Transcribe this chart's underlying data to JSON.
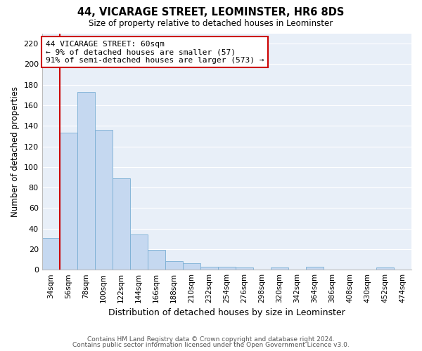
{
  "title": "44, VICARAGE STREET, LEOMINSTER, HR6 8DS",
  "subtitle": "Size of property relative to detached houses in Leominster",
  "xlabel": "Distribution of detached houses by size in Leominster",
  "ylabel": "Number of detached properties",
  "bar_color": "#c5d8f0",
  "bar_edge_color": "#7aafd4",
  "background_color": "#e8eff8",
  "grid_color": "#ffffff",
  "annotation_line_color": "#cc0000",
  "annotation_box_color": "#cc0000",
  "annotation_text": "44 VICARAGE STREET: 60sqm\n← 9% of detached houses are smaller (57)\n91% of semi-detached houses are larger (573) →",
  "categories": [
    "34sqm",
    "56sqm",
    "78sqm",
    "100sqm",
    "122sqm",
    "144sqm",
    "166sqm",
    "188sqm",
    "210sqm",
    "232sqm",
    "254sqm",
    "276sqm",
    "298sqm",
    "320sqm",
    "342sqm",
    "364sqm",
    "386sqm",
    "408sqm",
    "430sqm",
    "452sqm",
    "474sqm"
  ],
  "values": [
    31,
    133,
    173,
    136,
    89,
    34,
    19,
    8,
    6,
    3,
    3,
    2,
    0,
    2,
    0,
    3,
    0,
    0,
    0,
    2,
    0
  ],
  "ylim": [
    0,
    230
  ],
  "yticks": [
    0,
    20,
    40,
    60,
    80,
    100,
    120,
    140,
    160,
    180,
    200,
    220
  ],
  "footer1": "Contains HM Land Registry data © Crown copyright and database right 2024.",
  "footer2": "Contains public sector information licensed under the Open Government Licence v3.0.",
  "vline_x": 1.5,
  "figsize": [
    6.0,
    5.0
  ],
  "dpi": 100
}
